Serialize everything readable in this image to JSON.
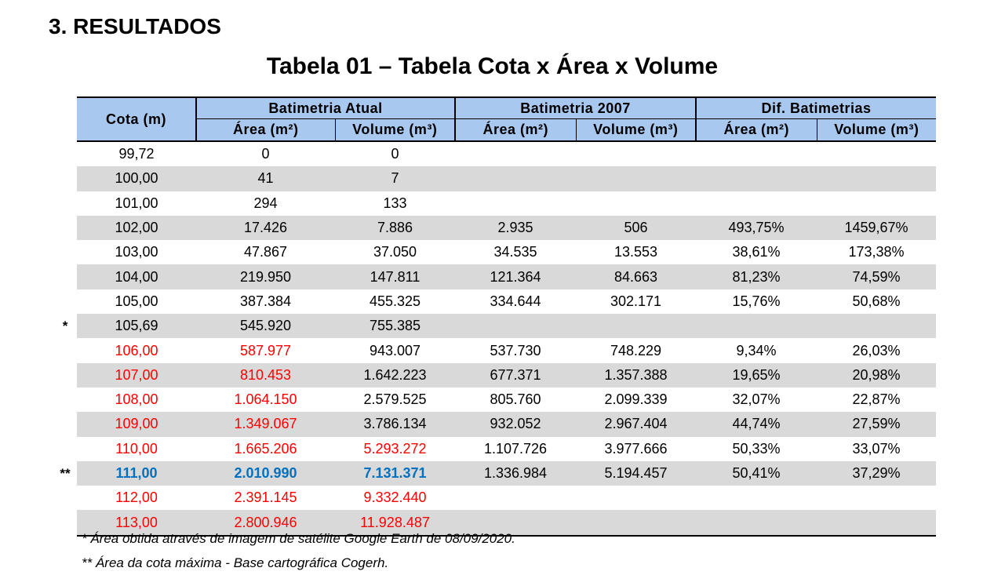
{
  "section_title": "3. RESULTADOS",
  "table_title": "Tabela 01 – Tabela Cota x Área x Volume",
  "header": {
    "cota": "Cota (m)",
    "groups": [
      "Batimetria Atual",
      "Batimetria 2007",
      "Dif. Batimetrias"
    ],
    "sub": [
      "Área (m²)",
      "Volume (m³)",
      "Área (m²)",
      "Volume (m³)",
      "Área (m²)",
      "Volume (m³)"
    ]
  },
  "colors": {
    "header_bg": "#a8c8f0",
    "shade_bg": "#d9d9d9",
    "red": "#ff0000",
    "blue": "#0070c0"
  },
  "rows": [
    {
      "marker": "",
      "cells": [
        "99,72",
        "0",
        "0",
        "",
        "",
        "",
        ""
      ],
      "style": [
        "",
        "",
        "",
        "",
        "",
        "",
        ""
      ]
    },
    {
      "marker": "",
      "cells": [
        "100,00",
        "41",
        "7",
        "",
        "",
        "",
        ""
      ],
      "style": [
        "",
        "",
        "",
        "",
        "",
        "",
        ""
      ]
    },
    {
      "marker": "",
      "cells": [
        "101,00",
        "294",
        "133",
        "",
        "",
        "",
        ""
      ],
      "style": [
        "",
        "",
        "",
        "",
        "",
        "",
        ""
      ]
    },
    {
      "marker": "",
      "cells": [
        "102,00",
        "17.426",
        "7.886",
        "2.935",
        "506",
        "493,75%",
        "1459,67%"
      ],
      "style": [
        "",
        "",
        "",
        "",
        "",
        "",
        ""
      ]
    },
    {
      "marker": "",
      "cells": [
        "103,00",
        "47.867",
        "37.050",
        "34.535",
        "13.553",
        "38,61%",
        "173,38%"
      ],
      "style": [
        "",
        "",
        "",
        "",
        "",
        "",
        ""
      ]
    },
    {
      "marker": "",
      "cells": [
        "104,00",
        "219.950",
        "147.811",
        "121.364",
        "84.663",
        "81,23%",
        "74,59%"
      ],
      "style": [
        "",
        "",
        "",
        "",
        "",
        "",
        ""
      ]
    },
    {
      "marker": "",
      "cells": [
        "105,00",
        "387.384",
        "455.325",
        "334.644",
        "302.171",
        "15,76%",
        "50,68%"
      ],
      "style": [
        "",
        "",
        "",
        "",
        "",
        "",
        ""
      ]
    },
    {
      "marker": "*",
      "cells": [
        "105,69",
        "545.920",
        "755.385",
        "",
        "",
        "",
        ""
      ],
      "style": [
        "",
        "",
        "",
        "",
        "",
        "",
        ""
      ]
    },
    {
      "marker": "",
      "cells": [
        "106,00",
        "587.977",
        "943.007",
        "537.730",
        "748.229",
        "9,34%",
        "26,03%"
      ],
      "style": [
        "red",
        "red",
        "",
        "",
        "",
        "",
        ""
      ]
    },
    {
      "marker": "",
      "cells": [
        "107,00",
        "810.453",
        "1.642.223",
        "677.371",
        "1.357.388",
        "19,65%",
        "20,98%"
      ],
      "style": [
        "red",
        "red",
        "",
        "",
        "",
        "",
        ""
      ]
    },
    {
      "marker": "",
      "cells": [
        "108,00",
        "1.064.150",
        "2.579.525",
        "805.760",
        "2.099.339",
        "32,07%",
        "22,87%"
      ],
      "style": [
        "red",
        "red",
        "",
        "",
        "",
        "",
        ""
      ]
    },
    {
      "marker": "",
      "cells": [
        "109,00",
        "1.349.067",
        "3.786.134",
        "932.052",
        "2.967.404",
        "44,74%",
        "27,59%"
      ],
      "style": [
        "red",
        "red",
        "",
        "",
        "",
        "",
        ""
      ]
    },
    {
      "marker": "",
      "cells": [
        "110,00",
        "1.665.206",
        "5.293.272",
        "1.107.726",
        "3.977.666",
        "50,33%",
        "33,07%"
      ],
      "style": [
        "red",
        "red",
        "red",
        "",
        "",
        "",
        ""
      ]
    },
    {
      "marker": "**",
      "cells": [
        "111,00",
        "2.010.990",
        "7.131.371",
        "1.336.984",
        "5.194.457",
        "50,41%",
        "37,29%"
      ],
      "style": [
        "blue",
        "blue",
        "blue",
        "",
        "",
        "",
        ""
      ]
    },
    {
      "marker": "",
      "cells": [
        "112,00",
        "2.391.145",
        "9.332.440",
        "",
        "",
        "",
        ""
      ],
      "style": [
        "red",
        "red",
        "red",
        "",
        "",
        "",
        ""
      ]
    },
    {
      "marker": "",
      "cells": [
        "113,00",
        "2.800.946",
        "11.928.487",
        "",
        "",
        "",
        ""
      ],
      "style": [
        "red",
        "red",
        "red",
        "",
        "",
        "",
        ""
      ]
    }
  ],
  "notes": [
    "* Área obtida através de imagem de satélite Google Earth de 08/09/2020.",
    "** Área da cota máxima - Base cartográfica Cogerh."
  ]
}
